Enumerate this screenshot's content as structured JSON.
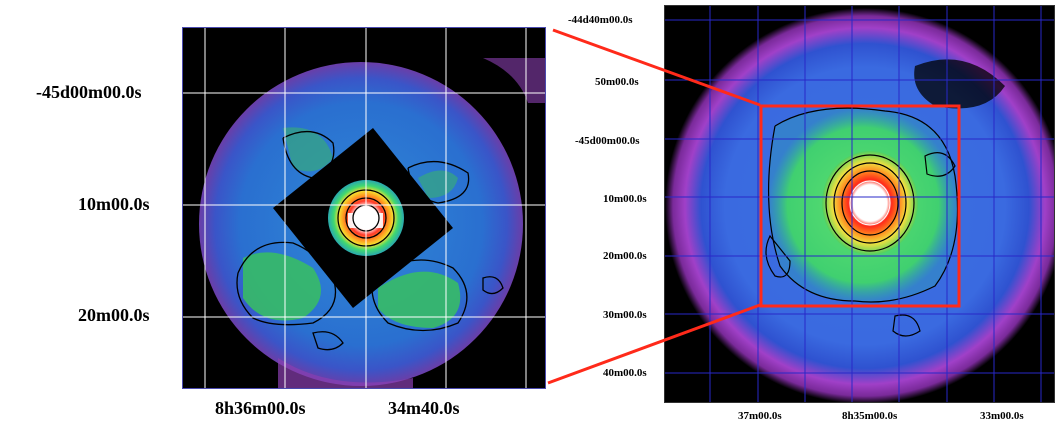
{
  "left_image": {
    "y_axis_labels": [
      "-45d00m00.0s",
      "10m00.0s",
      "20m00.0s"
    ],
    "x_axis_labels": [
      "8h36m00.0s",
      "34m40.0s"
    ]
  },
  "right_image": {
    "y_axis_labels": [
      "-44d40m00.0s",
      "50m00.0s",
      "-45d00m00.0s",
      "10m00.0s",
      "20m00.0s",
      "30m00.0s",
      "40m00.0s"
    ],
    "x_axis_labels": [
      "37m00.0s",
      "8h35m00.0s",
      "33m00.0s"
    ]
  },
  "colors": {
    "zoom_box": "#ff2a1a",
    "grid_left": "#ffffff",
    "grid_right": "#2828c8",
    "background": "#000000"
  }
}
